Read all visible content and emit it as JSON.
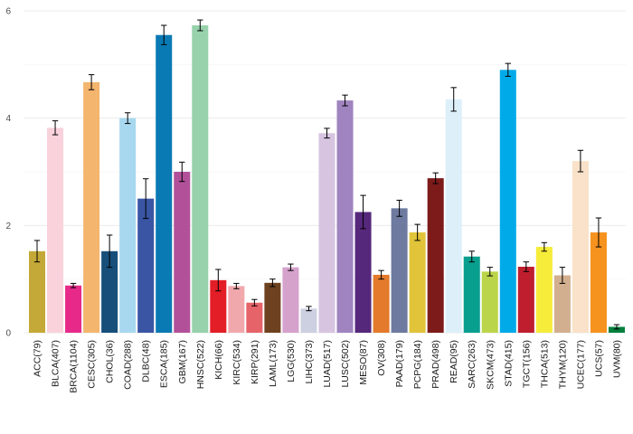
{
  "chart_data": {
    "type": "bar",
    "title": "",
    "xlabel": "",
    "ylabel": "",
    "ylim": [
      0,
      6
    ],
    "yticks": [
      0,
      2,
      4,
      6
    ],
    "grid": true,
    "legend": "none",
    "error_bars": true,
    "categories": [
      "ACC(79)",
      "BLCA(407)",
      "BRCA(1104)",
      "CESC(305)",
      "CHOL(36)",
      "COAD(288)",
      "DLBC(48)",
      "ESCA(185)",
      "GBM(167)",
      "HNSC(522)",
      "KICH(66)",
      "KIRC(534)",
      "KIRP(291)",
      "LAML(173)",
      "LGG(530)",
      "LIHC(373)",
      "LUAD(517)",
      "LUSC(502)",
      "MESO(87)",
      "OV(308)",
      "PAAD(179)",
      "PCPG(184)",
      "PRAD(498)",
      "READ(95)",
      "SARC(263)",
      "SKCM(473)",
      "STAD(415)",
      "TGCT(156)",
      "THCA(513)",
      "THYM(120)",
      "UCEC(177)",
      "UCS(57)",
      "UVM(80)"
    ],
    "values": [
      1.52,
      3.82,
      0.88,
      4.67,
      1.52,
      4.0,
      2.5,
      5.55,
      3.0,
      5.73,
      0.98,
      0.87,
      0.56,
      0.93,
      1.22,
      0.45,
      3.72,
      4.33,
      2.25,
      1.08,
      2.32,
      1.87,
      2.88,
      4.35,
      1.42,
      1.14,
      4.9,
      1.23,
      1.6,
      1.07,
      3.2,
      1.87,
      0.11
    ],
    "errors": [
      0.2,
      0.13,
      0.04,
      0.14,
      0.3,
      0.1,
      0.37,
      0.18,
      0.18,
      0.1,
      0.2,
      0.05,
      0.06,
      0.07,
      0.06,
      0.04,
      0.09,
      0.1,
      0.31,
      0.08,
      0.15,
      0.15,
      0.1,
      0.22,
      0.1,
      0.08,
      0.12,
      0.09,
      0.08,
      0.15,
      0.2,
      0.27,
      0.04
    ],
    "colors": [
      "#C5A938",
      "#F9D2DC",
      "#E72A8A",
      "#F4B56E",
      "#174E7A",
      "#A8D8EF",
      "#3A55A3",
      "#0A7AB4",
      "#B2519A",
      "#97D2AC",
      "#E31E26",
      "#F1A8AC",
      "#E56369",
      "#6E4220",
      "#D5A2CC",
      "#CDD0E0",
      "#D6C4E0",
      "#9F84C0",
      "#56287C",
      "#E47A2B",
      "#6E7A9F",
      "#E1C43A",
      "#7C1B1A",
      "#DDF0FA",
      "#099F8E",
      "#BBD54A",
      "#00AAE8",
      "#BF1E2E",
      "#F6EC3A",
      "#D2AF8E",
      "#F9E2C9",
      "#F6921E",
      "#06803E"
    ]
  }
}
